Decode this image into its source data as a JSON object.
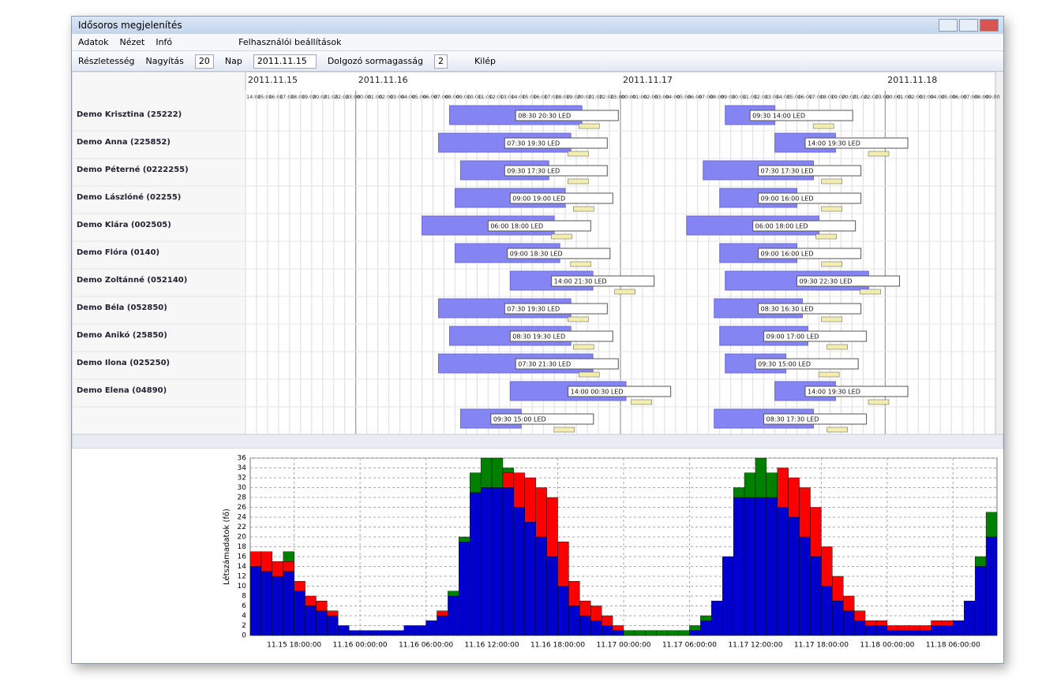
{
  "window": {
    "title": "Idősoros megjelenítés"
  },
  "menu": [
    "Adatok",
    "Nézet",
    "Infó"
  ],
  "toolbar": {
    "user_settings": "Felhasználói beállítások",
    "detail": "Részletesség",
    "zoom_label": "Nagyítás",
    "zoom_value": "20",
    "day_label": "Nap",
    "day_value": "2011.11.15",
    "row_height_label": "Dolgozó sormagasság",
    "row_height_value": "2",
    "exit": "Kilép"
  },
  "gantt": {
    "dates": [
      "2011.11.15",
      "2011.11.16",
      "2011.11.17",
      "2011.11.18"
    ],
    "hours": [
      "14:00",
      "15:00",
      "16:00",
      "17:00",
      "18:00",
      "19:00",
      "20:00",
      "21:00",
      "22:00",
      "23:00",
      "00:00",
      "01:00",
      "02:00",
      "03:00",
      "04:00",
      "05:00",
      "06:00",
      "07:00",
      "08:00",
      "09:00",
      "10:00",
      "11:00",
      "12:00",
      "13:00",
      "14:00",
      "15:00",
      "16:00",
      "17:00",
      "18:00",
      "19:00",
      "20:00",
      "21:00",
      "22:00",
      "23:00",
      "00:00",
      "01:00",
      "02:00",
      "03:00",
      "04:00",
      "05:00",
      "06:00",
      "07:00",
      "08:00",
      "09:00",
      "10:00",
      "11:00",
      "12:00",
      "13:00",
      "14:00",
      "15:00",
      "16:00",
      "17:00",
      "18:00",
      "19:00",
      "20:00",
      "21:00",
      "22:00",
      "23:00",
      "00:00",
      "01:00",
      "02:00",
      "03:00",
      "04:00",
      "05:00",
      "06:00",
      "07:00",
      "08:00",
      "09:00"
    ],
    "rows": [
      {
        "name": "Demo Krisztina (25222)",
        "shifts": [
          "08:30 20:30 LED",
          "09:30 14:00 LED"
        ]
      },
      {
        "name": "Demo Anna (225852)",
        "shifts": [
          "07:30 19:30 LED",
          "14:00 19:30 LED"
        ]
      },
      {
        "name": "Demo Péterné (0222255)",
        "shifts": [
          "09:30 17:30 LED",
          "07:30 17:30 LED"
        ]
      },
      {
        "name": "Demo Lászlóné (02255)",
        "shifts": [
          "09:00 19:00 LED",
          "09:00 16:00 LED"
        ]
      },
      {
        "name": "Demo Klára (002505)",
        "shifts": [
          "06:00 18:00 LED",
          "06:00 18:00 LED"
        ]
      },
      {
        "name": "Demo Flóra (0140)",
        "shifts": [
          "09:00 18:30 LED",
          "09:00 16:00 LED"
        ]
      },
      {
        "name": "Demo Zoltánné (052140)",
        "shifts": [
          "14:00 21:30 LED",
          "09:30 22:30 LED"
        ]
      },
      {
        "name": "Demo Béla  (052850)",
        "shifts": [
          "07:30 19:30 LED",
          "08:30 16:30 LED"
        ]
      },
      {
        "name": "Demo Anikó  (25850)",
        "shifts": [
          "08:30 19:30 LED",
          "09:00 17:00 LED"
        ]
      },
      {
        "name": "Demo Ilona  (025250)",
        "shifts": [
          "07:30 21:30 LED",
          "09:30 15:00 LED"
        ]
      },
      {
        "name": "Demo Elena  (04890)",
        "shifts": [
          "14:00 00:30 LED",
          "14:00 19:30 LED"
        ]
      },
      {
        "name": null,
        "shifts": [
          "09:30 15:00 LED",
          "08:30 17:30 LED"
        ]
      }
    ]
  },
  "chart_data": {
    "type": "stacked_bar",
    "y_label": "Létszámadatok (fő)",
    "categories": [
      null,
      null,
      null,
      null,
      "11.15 18:00:00",
      null,
      null,
      null,
      null,
      null,
      "11.16 00:00:00",
      null,
      null,
      null,
      null,
      null,
      "11.16 06:00:00",
      null,
      null,
      null,
      null,
      null,
      "11.16 12:00:00",
      null,
      null,
      null,
      null,
      null,
      "11.16 18:00:00",
      null,
      null,
      null,
      null,
      null,
      "11.17 00:00:00",
      null,
      null,
      null,
      null,
      null,
      "11.17 06:00:00",
      null,
      null,
      null,
      null,
      null,
      "11.17 12:00:00",
      null,
      null,
      null,
      null,
      null,
      "11.17 18:00:00",
      null,
      null,
      null,
      null,
      null,
      "11.18 00:00:00",
      null,
      null,
      null,
      null,
      null,
      "11.18 06:00:00",
      null,
      null,
      null
    ],
    "series": [
      {
        "color": "#0000cc",
        "values": [
          14,
          13,
          12,
          13,
          9,
          6,
          5,
          4,
          2,
          1,
          1,
          1,
          1,
          1,
          2,
          2,
          3,
          4,
          8,
          19,
          29,
          30,
          30,
          30,
          26,
          23,
          20,
          16,
          10,
          6,
          4,
          3,
          2,
          1,
          0,
          0,
          0,
          0,
          0,
          0,
          1,
          3,
          7,
          16,
          28,
          28,
          28,
          28,
          26,
          24,
          20,
          16,
          10,
          7,
          5,
          3,
          2,
          2,
          1,
          1,
          1,
          1,
          2,
          2,
          3,
          7,
          14,
          20
        ]
      },
      {
        "color": "#ff0000",
        "values": [
          3,
          4,
          3,
          2,
          2,
          2,
          2,
          1,
          0,
          0,
          0,
          0,
          0,
          0,
          0,
          0,
          0,
          1,
          0,
          0,
          0,
          0,
          0,
          3,
          7,
          9,
          10,
          12,
          9,
          5,
          3,
          3,
          2,
          1,
          0,
          0,
          0,
          0,
          0,
          0,
          0,
          0,
          0,
          0,
          0,
          0,
          0,
          0,
          8,
          8,
          10,
          10,
          8,
          5,
          3,
          2,
          1,
          1,
          1,
          1,
          1,
          1,
          1,
          1,
          0,
          0,
          0,
          0
        ]
      },
      {
        "color": "#008000",
        "values": [
          0,
          0,
          0,
          2,
          0,
          0,
          0,
          0,
          0,
          0,
          0,
          0,
          0,
          0,
          0,
          0,
          0,
          0,
          1,
          1,
          4,
          6,
          6,
          1,
          0,
          0,
          0,
          0,
          0,
          0,
          0,
          0,
          0,
          0,
          1,
          1,
          1,
          1,
          1,
          1,
          1,
          1,
          0,
          0,
          2,
          5,
          8,
          5,
          0,
          0,
          0,
          0,
          0,
          0,
          0,
          0,
          0,
          0,
          0,
          0,
          0,
          0,
          0,
          0,
          0,
          0,
          2,
          5
        ]
      }
    ],
    "ylim": [
      0,
      36
    ],
    "yticks": [
      0,
      2,
      4,
      6,
      8,
      10,
      12,
      14,
      16,
      18,
      20,
      22,
      24,
      26,
      28,
      30,
      32,
      34,
      36
    ],
    "grid": true
  }
}
